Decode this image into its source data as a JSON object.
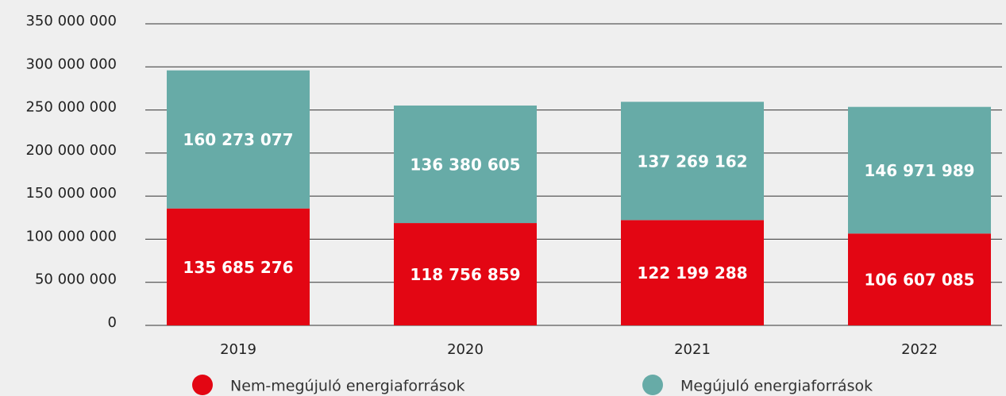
{
  "chart_data": {
    "type": "stacked_bar",
    "categories": [
      "2019",
      "2020",
      "2021",
      "2022"
    ],
    "series": [
      {
        "name": "Nem-megújuló energiaforrások",
        "color": "#e30613",
        "values": [
          135685276,
          118756859,
          122199288,
          106607085
        ],
        "value_labels": [
          "135 685 276",
          "118 756 859",
          "122 199 288",
          "106 607 085"
        ]
      },
      {
        "name": "Megújuló energiaforrások",
        "color": "#67aba7",
        "values": [
          160273077,
          136380605,
          137269162,
          146971989
        ],
        "value_labels": [
          "160 273 077",
          "136 380 605",
          "137 269 162",
          "146 971 989"
        ]
      }
    ],
    "ylim": [
      0,
      350000000
    ],
    "yticks": [
      0,
      {
        "value": 50000000,
        "label": "50 000 000"
      },
      {
        "value": 100000000,
        "label": "100 000 000"
      },
      {
        "value": 150000000,
        "label": "150 000 000"
      },
      {
        "value": 200000000,
        "label": "200 000 000"
      },
      {
        "value": 250000000,
        "label": "250 000 000"
      },
      {
        "value": 300000000,
        "label": "300 000 000"
      },
      {
        "value": 350000000,
        "label": "350 000 000"
      }
    ],
    "grid": true,
    "legend": "bottom"
  }
}
